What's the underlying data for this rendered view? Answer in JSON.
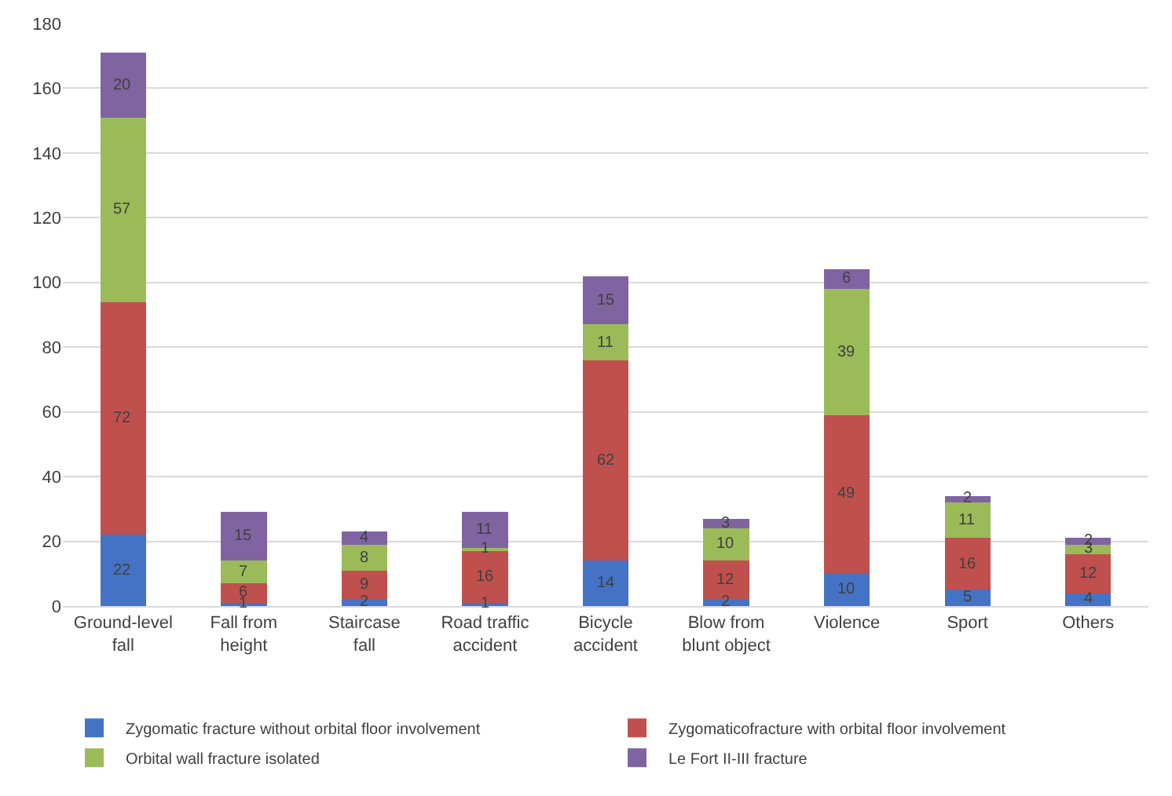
{
  "chart_data": {
    "type": "bar",
    "stacked": true,
    "data_labels": true,
    "grid": "y",
    "legend": "bottom",
    "categories": [
      "Ground-level fall",
      "Fall from height",
      "Staircase fall",
      "Road traffic accident",
      "Bicycle accident",
      "Blow from blunt object",
      "Violence",
      "Sport",
      "Others"
    ],
    "series": [
      {
        "name": "Zygomatic fracture without orbital floor involvement",
        "color": "#4472c4",
        "values": [
          22,
          1,
          2,
          1,
          14,
          2,
          10,
          5,
          4
        ]
      },
      {
        "name": "Zygomaticofracture with orbital floor involvement",
        "color": "#c0504d",
        "values": [
          72,
          6,
          9,
          16,
          62,
          12,
          49,
          16,
          12
        ]
      },
      {
        "name": "Orbital wall fracture isolated",
        "color": "#9bbb59",
        "values": [
          57,
          7,
          8,
          1,
          11,
          10,
          39,
          11,
          3
        ]
      },
      {
        "name": "Le Fort II-III fracture",
        "color": "#8064a2",
        "values": [
          20,
          15,
          4,
          11,
          15,
          3,
          6,
          2,
          2
        ]
      }
    ],
    "ylim": [
      0,
      180
    ],
    "yticks": [
      0,
      20,
      40,
      60,
      80,
      100,
      120,
      140,
      160,
      180
    ]
  }
}
